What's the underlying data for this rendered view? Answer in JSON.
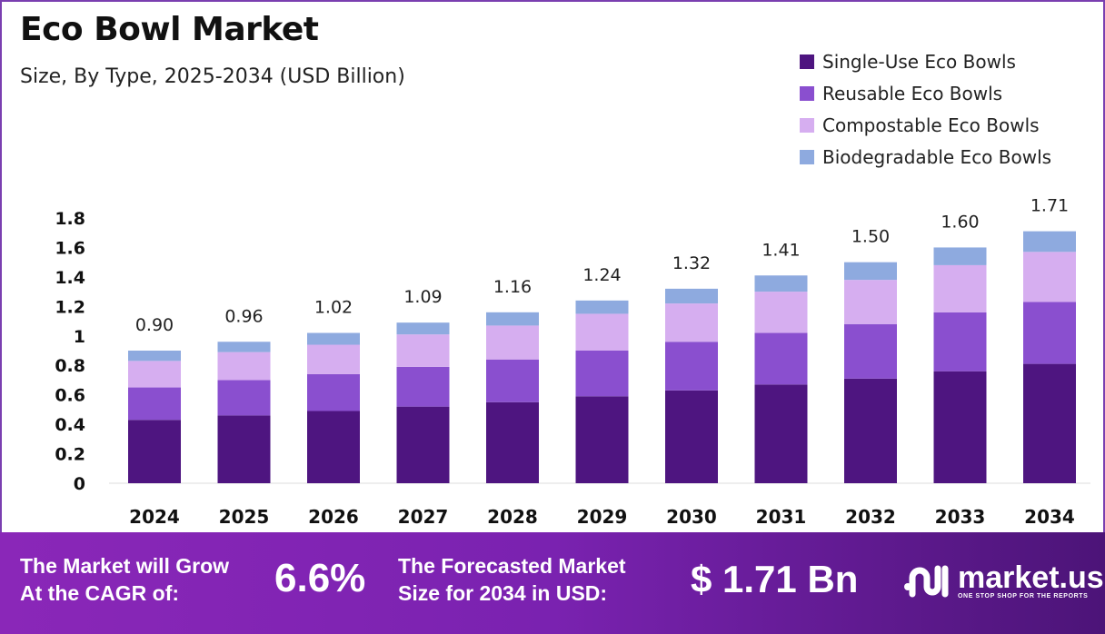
{
  "chart_data": {
    "type": "bar",
    "stacked": true,
    "title": "Eco Bowl Market",
    "subtitle": "Size, By Type, 2025-2034 (USD Billion)",
    "categories": [
      "2024",
      "2025",
      "2026",
      "2027",
      "2028",
      "2029",
      "2030",
      "2031",
      "2032",
      "2033",
      "2034"
    ],
    "totals": [
      "0.90",
      "0.96",
      "1.02",
      "1.09",
      "1.16",
      "1.24",
      "1.32",
      "1.41",
      "1.50",
      "1.60",
      "1.71"
    ],
    "series": [
      {
        "name": "Single-Use Eco Bowls",
        "color": "#4e1580",
        "values": [
          0.43,
          0.46,
          0.49,
          0.52,
          0.55,
          0.59,
          0.63,
          0.67,
          0.71,
          0.76,
          0.81
        ]
      },
      {
        "name": "Reusable Eco Bowls",
        "color": "#8a4fcf",
        "values": [
          0.22,
          0.24,
          0.25,
          0.27,
          0.29,
          0.31,
          0.33,
          0.35,
          0.37,
          0.4,
          0.42
        ]
      },
      {
        "name": "Compostable Eco Bowls",
        "color": "#d6aef0",
        "values": [
          0.18,
          0.19,
          0.2,
          0.22,
          0.23,
          0.25,
          0.26,
          0.28,
          0.3,
          0.32,
          0.34
        ]
      },
      {
        "name": "Biodegradable Eco Bowls",
        "color": "#8eaadf",
        "values": [
          0.07,
          0.07,
          0.08,
          0.08,
          0.09,
          0.09,
          0.1,
          0.11,
          0.12,
          0.12,
          0.14
        ]
      }
    ],
    "yticks": [
      "0",
      "0.2",
      "0.4",
      "0.6",
      "0.8",
      "1",
      "1.2",
      "1.4",
      "1.6",
      "1.8"
    ],
    "ylim": [
      0,
      1.8
    ],
    "grid": false,
    "legend": "top-right"
  },
  "banner": {
    "cagr_label_1": "The Market will Grow",
    "cagr_label_2": "At the CAGR of:",
    "cagr": "6.6%",
    "forecast_label_1": "The Forecasted Market",
    "forecast_label_2": "Size for 2034 in USD:",
    "forecast": "$ 1.71 Bn",
    "logo": "market.us",
    "tagline": "ONE STOP SHOP FOR THE REPORTS"
  }
}
